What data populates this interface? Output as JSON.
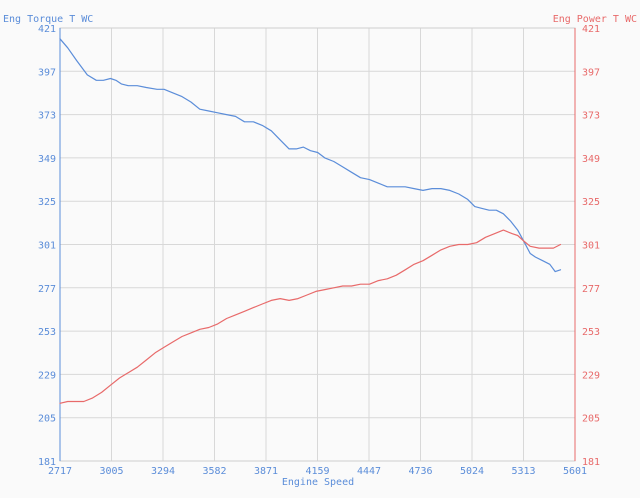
{
  "chart_data": {
    "type": "line",
    "title": "",
    "xlabel": "Engine Speed",
    "ylabel_left": "Eng Torque T WC",
    "ylabel_right": "Eng Power T WC",
    "x_ticks": [
      "2717",
      "3005",
      "3294",
      "3582",
      "3871",
      "4159",
      "4447",
      "4736",
      "5024",
      "5313",
      "5601"
    ],
    "y_ticks": [
      "181",
      "205",
      "229",
      "253",
      "277",
      "301",
      "325",
      "349",
      "373",
      "397",
      "421"
    ],
    "xlim": [
      2717,
      5601
    ],
    "ylim_left": [
      181,
      421
    ],
    "ylim_right": [
      181,
      421
    ],
    "grid": true,
    "colors": {
      "torque": "#5b8dd9",
      "power": "#e86a6a",
      "grid": "#d8d8d8"
    },
    "series": [
      {
        "name": "Eng Torque T WC",
        "axis": "left",
        "color": "#5b8dd9",
        "x": [
          2717,
          2760,
          2810,
          2870,
          2920,
          2960,
          3000,
          3030,
          3060,
          3100,
          3150,
          3200,
          3260,
          3300,
          3350,
          3400,
          3450,
          3500,
          3550,
          3600,
          3650,
          3700,
          3750,
          3800,
          3850,
          3900,
          3950,
          4000,
          4040,
          4080,
          4120,
          4160,
          4200,
          4250,
          4300,
          4350,
          4400,
          4450,
          4500,
          4550,
          4600,
          4650,
          4700,
          4750,
          4800,
          4850,
          4900,
          4950,
          5000,
          5040,
          5080,
          5120,
          5160,
          5200,
          5240,
          5280,
          5313,
          5350,
          5380,
          5420,
          5460,
          5490,
          5520
        ],
        "values": [
          415,
          410,
          403,
          395,
          392,
          392,
          393,
          392,
          390,
          389,
          389,
          388,
          387,
          387,
          385,
          383,
          380,
          376,
          375,
          374,
          373,
          372,
          369,
          369,
          367,
          364,
          359,
          354,
          354,
          355,
          353,
          352,
          349,
          347,
          344,
          341,
          338,
          337,
          335,
          333,
          333,
          333,
          332,
          331,
          332,
          332,
          331,
          329,
          326,
          322,
          321,
          320,
          320,
          318,
          314,
          309,
          303,
          296,
          294,
          292,
          290,
          286,
          287
        ]
      },
      {
        "name": "Eng Power T WC",
        "axis": "right",
        "color": "#e86a6a",
        "x": [
          2717,
          2760,
          2800,
          2850,
          2900,
          2950,
          3000,
          3050,
          3100,
          3150,
          3200,
          3250,
          3300,
          3350,
          3400,
          3450,
          3500,
          3550,
          3600,
          3650,
          3700,
          3750,
          3800,
          3850,
          3900,
          3950,
          4000,
          4050,
          4100,
          4150,
          4200,
          4250,
          4300,
          4350,
          4400,
          4450,
          4500,
          4550,
          4600,
          4650,
          4700,
          4750,
          4800,
          4850,
          4900,
          4950,
          5000,
          5050,
          5100,
          5150,
          5200,
          5250,
          5280,
          5313,
          5350,
          5400,
          5440,
          5480,
          5520
        ],
        "values": [
          213,
          214,
          214,
          214,
          216,
          219,
          223,
          227,
          230,
          233,
          237,
          241,
          244,
          247,
          250,
          252,
          254,
          255,
          257,
          260,
          262,
          264,
          266,
          268,
          270,
          271,
          270,
          271,
          273,
          275,
          276,
          277,
          278,
          278,
          279,
          279,
          281,
          282,
          284,
          287,
          290,
          292,
          295,
          298,
          300,
          301,
          301,
          302,
          305,
          307,
          309,
          307,
          306,
          303,
          300,
          299,
          299,
          299,
          301
        ]
      }
    ]
  }
}
